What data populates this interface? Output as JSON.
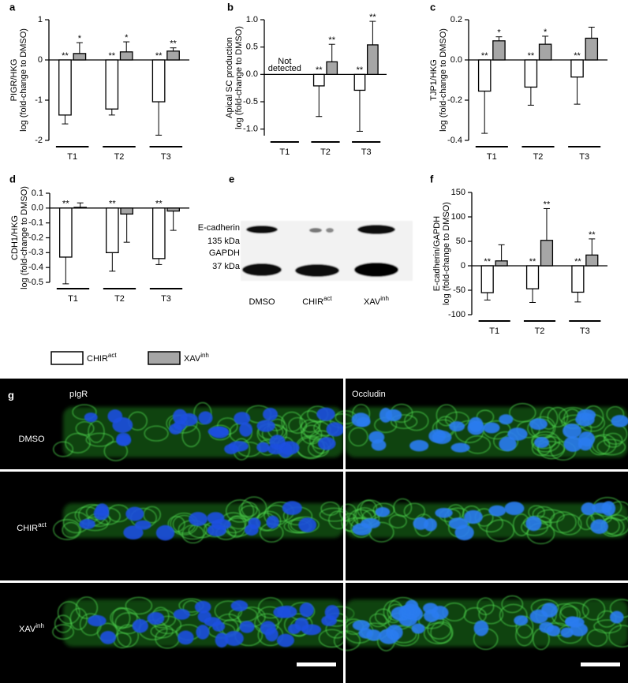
{
  "legend": [
    {
      "name": "CHIR",
      "sup": "act",
      "color": "#ffffff"
    },
    {
      "name": "XAV",
      "sup": "inh",
      "color": "#a6a6a6"
    }
  ],
  "chart_data": [
    {
      "type": "bar",
      "panel_label": "a",
      "ylabel": [
        "PIGR/HKG",
        "log (fold-change to DMSO)"
      ],
      "categories": [
        "T1",
        "T2",
        "T3"
      ],
      "ylim": [
        -2,
        1
      ],
      "yticks": [
        -2,
        -1,
        0,
        1
      ],
      "series": [
        {
          "color": "#ffffff",
          "values": [
            -1.37,
            -1.22,
            -1.04
          ],
          "errors": [
            0.22,
            0.15,
            0.83
          ],
          "significance": [
            "**",
            "**",
            "**"
          ]
        },
        {
          "color": "#a6a6a6",
          "values": [
            0.16,
            0.2,
            0.22
          ],
          "errors": [
            0.27,
            0.25,
            0.08
          ],
          "significance": [
            "*",
            "*",
            "**"
          ]
        }
      ]
    },
    {
      "type": "bar",
      "panel_label": "b",
      "ylabel": [
        "Apical SC production",
        "log (fold-change to DMSO)"
      ],
      "categories": [
        "T1",
        "T2",
        "T3"
      ],
      "ylim": [
        -1.12,
        1.0
      ],
      "yticks": [
        {
          "value": -1,
          "label": "-1.0"
        },
        -0.5,
        {
          "value": 0,
          "label": "0.0"
        },
        0.5,
        {
          "value": 1,
          "label": "1.0"
        }
      ],
      "notes": [
        [
          "Not",
          "detected"
        ],
        null,
        null
      ],
      "series": [
        {
          "color": "#ffffff",
          "values": [
            null,
            -0.21,
            -0.29
          ],
          "errors": [
            null,
            0.56,
            0.75
          ],
          "significance": [
            null,
            "**",
            "**"
          ]
        },
        {
          "color": "#a6a6a6",
          "values": [
            null,
            0.23,
            0.54
          ],
          "errors": [
            null,
            0.32,
            0.43
          ],
          "significance": [
            null,
            "**",
            "**"
          ]
        }
      ]
    },
    {
      "type": "bar",
      "panel_label": "c",
      "ylabel": [
        "TJP1/HKG",
        "log (fold-change to DMSO)"
      ],
      "categories": [
        "T1",
        "T2",
        "T3"
      ],
      "ylim": [
        -0.4,
        0.2
      ],
      "yticks": [
        -0.4,
        -0.2,
        {
          "value": 0,
          "label": "0.0"
        },
        0.2
      ],
      "series": [
        {
          "color": "#ffffff",
          "values": [
            -0.155,
            -0.135,
            -0.085
          ],
          "errors": [
            0.21,
            0.09,
            0.135
          ],
          "significance": [
            "**",
            "**",
            "**"
          ]
        },
        {
          "color": "#a6a6a6",
          "values": [
            0.095,
            0.078,
            0.108
          ],
          "errors": [
            0.02,
            0.04,
            0.055
          ],
          "significance": [
            "*",
            "*",
            null
          ]
        }
      ]
    },
    {
      "type": "bar",
      "panel_label": "d",
      "ylabel": [
        "CDH1/HKG",
        "log (fold-change to DMSO)"
      ],
      "categories": [
        "T1",
        "T2",
        "T3"
      ],
      "ylim": [
        -0.5,
        0.1
      ],
      "yticks": [
        -0.5,
        -0.4,
        -0.3,
        -0.2,
        -0.1,
        {
          "value": 0,
          "label": "0.0"
        },
        0.1
      ],
      "series": [
        {
          "color": "#ffffff",
          "values": [
            -0.33,
            -0.3,
            -0.34
          ],
          "errors": [
            0.18,
            0.125,
            0.04
          ],
          "significance": [
            "**",
            "**",
            "**"
          ]
        },
        {
          "color": "#a6a6a6",
          "values": [
            0.005,
            -0.04,
            -0.02
          ],
          "errors": [
            0.03,
            0.19,
            0.13
          ],
          "significance": [
            null,
            null,
            null
          ]
        }
      ]
    },
    {
      "type": "bar",
      "panel_label": "f",
      "ylabel": [
        "E-cadherin/GAPDH",
        "log (fold-change to DMSO)"
      ],
      "categories": [
        "T1",
        "T2",
        "T3"
      ],
      "ylim": [
        -100,
        150
      ],
      "yticks": [
        -100,
        -50,
        0,
        50,
        100,
        150
      ],
      "series": [
        {
          "color": "#ffffff",
          "values": [
            -55,
            -47,
            -54
          ],
          "errors": [
            15,
            28,
            20
          ],
          "significance": [
            "**",
            "**",
            "**"
          ]
        },
        {
          "color": "#a6a6a6",
          "values": [
            10,
            52,
            22
          ],
          "errors": [
            33,
            65,
            33
          ],
          "significance": [
            null,
            "**",
            "**"
          ]
        }
      ]
    }
  ],
  "blot": {
    "panel_label": "e",
    "rows": [
      {
        "name": "E-cadherin",
        "size": "135 kDa"
      },
      {
        "name": "GAPDH",
        "size": "37 kDa"
      }
    ],
    "lanes": [
      {
        "name": "DMSO"
      },
      {
        "name": "CHIR",
        "sup": "act"
      },
      {
        "name": "XAV",
        "sup": "inh"
      }
    ]
  },
  "micrographs": {
    "panel_label": "g",
    "columns": [
      "pIgR",
      "Occludin"
    ],
    "rows": [
      {
        "name": "DMSO"
      },
      {
        "name": "CHIR",
        "sup": "act"
      },
      {
        "name": "XAV",
        "sup": "inh"
      }
    ]
  }
}
